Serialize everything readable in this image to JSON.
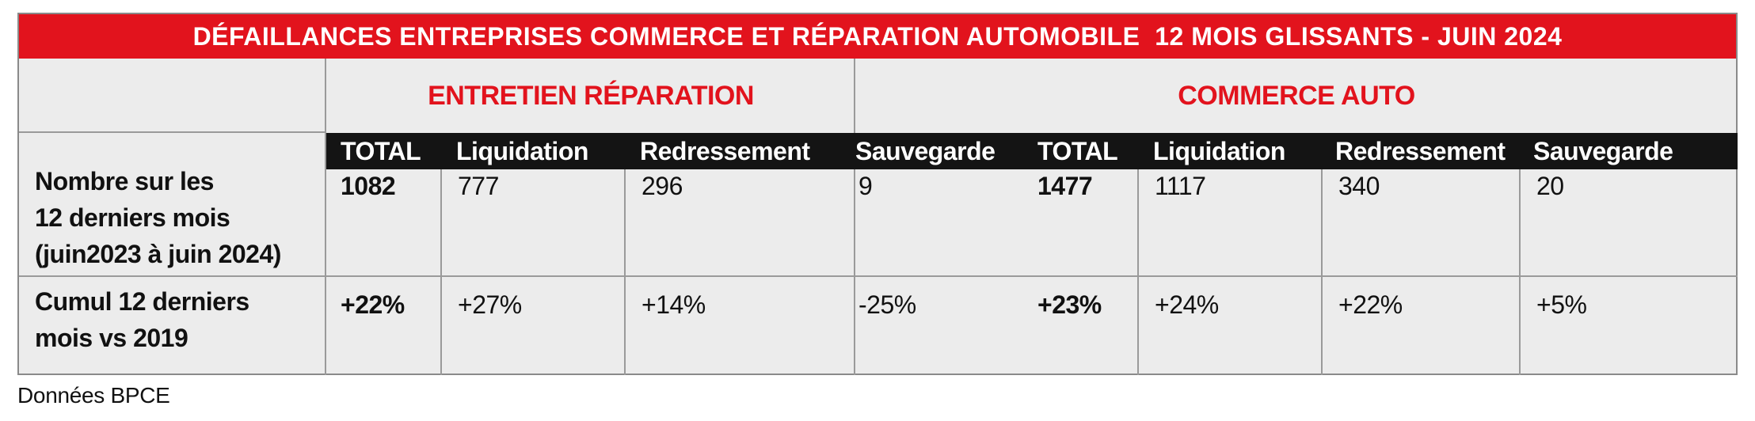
{
  "title": "DÉFAILLANCES ENTREPRISES COMMERCE ET RÉPARATION AUTOMOBILE  12 MOIS GLISSANTS - JUIN 2024",
  "groups": [
    {
      "label": "ENTRETIEN RÉPARATION",
      "columns": [
        "TOTAL",
        "Liquidation",
        "Redressement",
        "Sauvegarde"
      ]
    },
    {
      "label": "COMMERCE AUTO",
      "columns": [
        "TOTAL",
        "Liquidation",
        "Redressement",
        "Sauvegarde"
      ]
    }
  ],
  "rows": [
    {
      "label_lines": [
        "Nombre sur les",
        "12 derniers mois",
        "(juin2023 à juin 2024)"
      ],
      "values": [
        "1082",
        "777",
        "296",
        "9",
        "1477",
        "1117",
        "340",
        "20"
      ]
    },
    {
      "label_lines": [
        "Cumul 12 derniers",
        "mois vs 2019"
      ],
      "values": [
        "+22%",
        "+27%",
        "+14%",
        "-25%",
        "+23%",
        "+24%",
        "+22%",
        "+5%"
      ]
    }
  ],
  "source": "Données BPCE",
  "colors": {
    "accent_red": "#e2131d",
    "header_black": "#141414",
    "table_bg": "#ececec",
    "grid": "#9a9a9a"
  }
}
